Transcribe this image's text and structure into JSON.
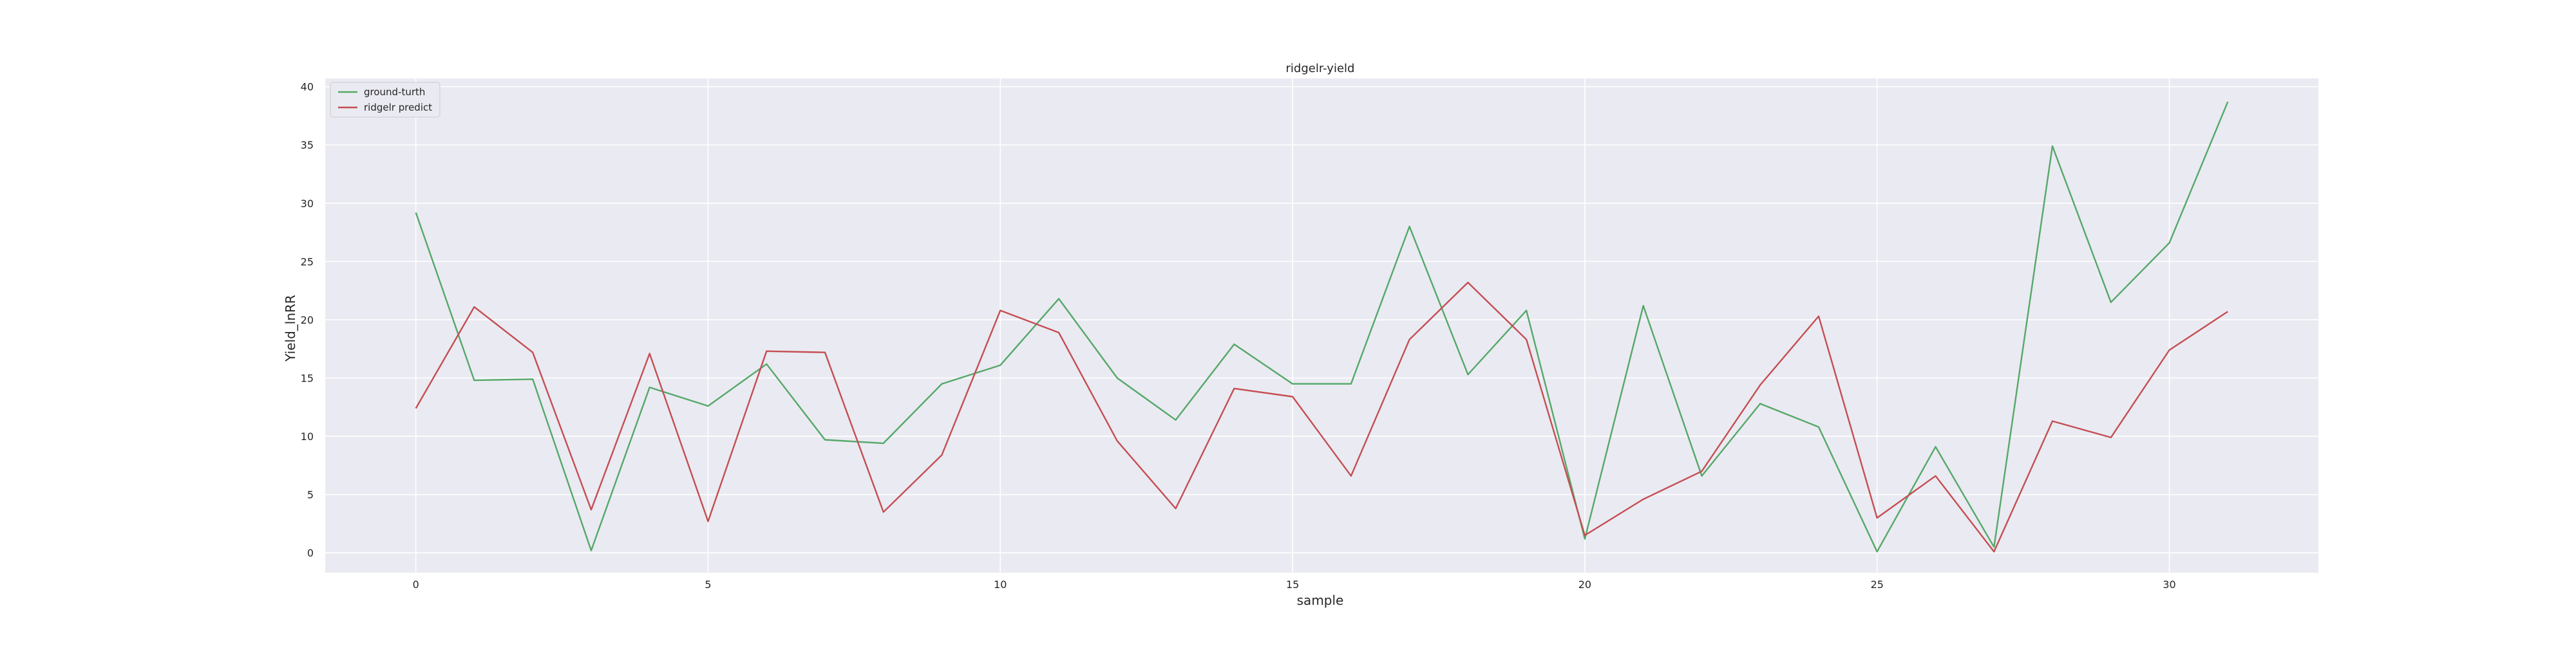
{
  "chart_data": {
    "type": "line",
    "title": "ridgelr-yield",
    "xlabel": "sample",
    "ylabel": "Yield_lnRR",
    "x": [
      0,
      1,
      2,
      3,
      4,
      5,
      6,
      7,
      8,
      9,
      10,
      11,
      12,
      13,
      14,
      15,
      16,
      17,
      18,
      19,
      20,
      21,
      22,
      23,
      24,
      25,
      26,
      27,
      28,
      29,
      30,
      31
    ],
    "xlim": [
      -1.55,
      32.55
    ],
    "ylim": [
      -1.7,
      40.7
    ],
    "xticks": [
      0,
      5,
      10,
      15,
      20,
      25,
      30
    ],
    "yticks": [
      0,
      5,
      10,
      15,
      20,
      25,
      30,
      35,
      40
    ],
    "grid": true,
    "legend_position": "top-left",
    "background_color": "#eaeaf2",
    "grid_color": "#ffffff",
    "series": [
      {
        "name": "ground-turth",
        "color": "#55a868",
        "values": [
          29.2,
          14.8,
          14.9,
          0.2,
          14.2,
          12.6,
          16.2,
          9.7,
          9.4,
          14.5,
          16.1,
          21.8,
          15.0,
          11.4,
          17.9,
          14.5,
          14.5,
          28.0,
          15.3,
          20.8,
          1.2,
          21.2,
          6.6,
          12.8,
          10.8,
          0.1,
          9.1,
          0.5,
          34.9,
          21.5,
          26.6,
          38.7
        ]
      },
      {
        "name": "ridgelr predict",
        "color": "#c44e52",
        "values": [
          12.4,
          21.1,
          17.2,
          3.7,
          17.1,
          2.7,
          17.3,
          17.2,
          3.5,
          8.4,
          20.8,
          18.9,
          9.6,
          3.8,
          14.1,
          13.4,
          6.6,
          18.3,
          23.2,
          18.3,
          1.5,
          4.6,
          7.0,
          14.4,
          20.3,
          3.0,
          6.6,
          0.1,
          11.3,
          9.9,
          17.4,
          20.7
        ]
      }
    ]
  }
}
